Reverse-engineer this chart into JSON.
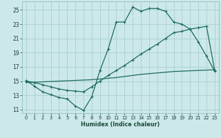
{
  "xlabel": "Humidex (Indice chaleur)",
  "bg_color": "#cce8e8",
  "grid_color": "#aad0d0",
  "line_color": "#1a6a5a",
  "xlim": [
    -0.5,
    23.5
  ],
  "ylim": [
    10.5,
    26.2
  ],
  "xticks": [
    0,
    1,
    2,
    3,
    4,
    5,
    6,
    7,
    8,
    9,
    10,
    11,
    12,
    13,
    14,
    15,
    16,
    17,
    18,
    19,
    20,
    21,
    22,
    23
  ],
  "yticks": [
    11,
    13,
    15,
    17,
    19,
    21,
    23,
    25
  ],
  "curve1_x": [
    0,
    1,
    2,
    3,
    4,
    5,
    6,
    7,
    8,
    9,
    10,
    11,
    12,
    13,
    14,
    15,
    16,
    17,
    18,
    19,
    20,
    21,
    22,
    23
  ],
  "curve1_y": [
    15.1,
    14.3,
    13.5,
    13.1,
    12.7,
    12.5,
    11.5,
    10.9,
    12.8,
    16.5,
    19.5,
    23.3,
    23.3,
    25.4,
    24.8,
    25.2,
    25.2,
    24.8,
    23.3,
    23.0,
    22.3,
    20.5,
    18.5,
    16.4
  ],
  "curve2_x": [
    0,
    1,
    2,
    3,
    4,
    5,
    6,
    7,
    8,
    9,
    10,
    11,
    12,
    13,
    14,
    15,
    16,
    17,
    18,
    19,
    20,
    21,
    22,
    23
  ],
  "curve2_y": [
    15.0,
    14.8,
    14.5,
    14.2,
    13.9,
    13.7,
    13.6,
    13.5,
    14.2,
    15.0,
    15.8,
    16.5,
    17.2,
    18.0,
    18.8,
    19.5,
    20.2,
    21.0,
    21.8,
    22.0,
    22.3,
    22.5,
    22.7,
    16.5
  ],
  "curve3_x": [
    0,
    1,
    2,
    3,
    4,
    5,
    6,
    7,
    8,
    9,
    10,
    11,
    12,
    13,
    14,
    15,
    16,
    17,
    18,
    19,
    20,
    21,
    22,
    23
  ],
  "curve3_y": [
    14.8,
    14.85,
    14.9,
    14.95,
    15.0,
    15.05,
    15.1,
    15.15,
    15.2,
    15.3,
    15.4,
    15.5,
    15.65,
    15.8,
    15.95,
    16.05,
    16.15,
    16.25,
    16.35,
    16.4,
    16.45,
    16.5,
    16.55,
    16.6
  ]
}
